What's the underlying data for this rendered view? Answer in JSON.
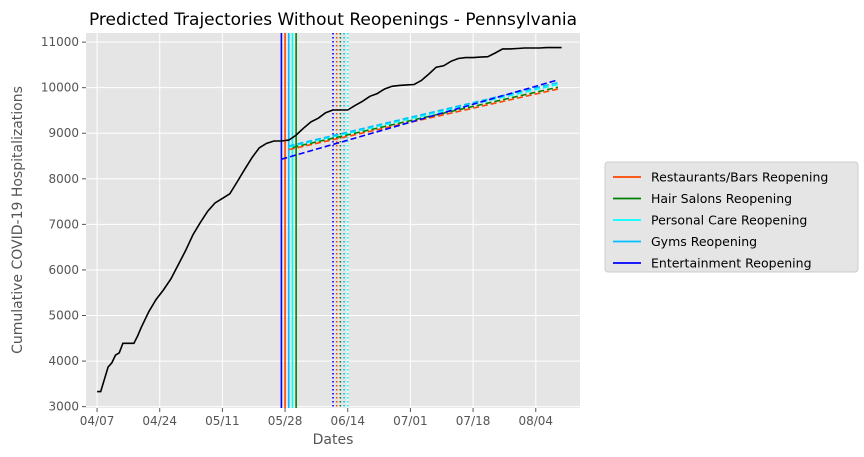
{
  "chart_data": {
    "type": "line",
    "title": "Predicted Trajectories Without Reopenings - Pennsylvania",
    "xlabel": "Dates",
    "ylabel": "Cumulative COVID-19 Hospitalizations",
    "x_ticks": [
      "04/07",
      "04/24",
      "05/11",
      "05/28",
      "06/14",
      "07/01",
      "07/18",
      "08/04"
    ],
    "y_ticks": [
      3000,
      4000,
      5000,
      6000,
      7000,
      8000,
      9000,
      10000,
      11000
    ],
    "xlim": [
      "2020-04-04",
      "2020-08-16"
    ],
    "ylim": [
      2970,
      11200
    ],
    "grid": true,
    "legend_position": "outside-right",
    "colors": {
      "background": "#e5e5e5",
      "grid": "#ffffff",
      "observed": "#000000",
      "restaurants": "#ff4500",
      "hair_salons": "#008000",
      "personal_care": "#00ffff",
      "gyms": "#00bfff",
      "entertainment": "#0000ff"
    },
    "observed": {
      "dates": [
        "2020-04-07",
        "2020-04-08",
        "2020-04-09",
        "2020-04-10",
        "2020-04-11",
        "2020-04-12",
        "2020-04-13",
        "2020-04-14",
        "2020-04-15",
        "2020-04-16",
        "2020-04-17",
        "2020-04-18",
        "2020-04-19",
        "2020-04-21",
        "2020-04-23",
        "2020-04-25",
        "2020-04-27",
        "2020-04-29",
        "2020-05-01",
        "2020-05-03",
        "2020-05-05",
        "2020-05-07",
        "2020-05-09",
        "2020-05-11",
        "2020-05-13",
        "2020-05-15",
        "2020-05-17",
        "2020-05-19",
        "2020-05-21",
        "2020-05-23",
        "2020-05-25",
        "2020-05-27",
        "2020-05-29",
        "2020-05-31",
        "2020-06-02",
        "2020-06-04",
        "2020-06-06",
        "2020-06-08",
        "2020-06-10",
        "2020-06-12",
        "2020-06-14",
        "2020-06-16",
        "2020-06-18",
        "2020-06-20",
        "2020-06-22",
        "2020-06-24",
        "2020-06-26",
        "2020-06-28",
        "2020-06-30",
        "2020-07-02",
        "2020-07-04",
        "2020-07-06",
        "2020-07-08",
        "2020-07-10",
        "2020-07-12",
        "2020-07-14",
        "2020-07-16",
        "2020-07-18",
        "2020-07-20",
        "2020-07-22",
        "2020-07-24",
        "2020-07-26",
        "2020-07-28",
        "2020-07-30",
        "2020-08-01",
        "2020-08-03",
        "2020-08-05",
        "2020-08-07",
        "2020-08-09",
        "2020-08-11"
      ],
      "values": [
        3330,
        3330,
        3600,
        3870,
        3960,
        4130,
        4180,
        4390,
        4390,
        4390,
        4390,
        4550,
        4740,
        5080,
        5350,
        5560,
        5800,
        6110,
        6420,
        6770,
        7040,
        7290,
        7470,
        7570,
        7670,
        7930,
        8200,
        8460,
        8680,
        8780,
        8830,
        8830,
        8850,
        8960,
        9110,
        9250,
        9330,
        9450,
        9510,
        9510,
        9510,
        9610,
        9700,
        9810,
        9870,
        9970,
        10030,
        10050,
        10060,
        10070,
        10160,
        10300,
        10450,
        10480,
        10580,
        10640,
        10660,
        10660,
        10670,
        10680,
        10760,
        10850,
        10850,
        10860,
        10870,
        10870,
        10870,
        10880,
        10880,
        10880
      ]
    },
    "predictions": [
      {
        "name": "Restaurants/Bars Reopening",
        "color_key": "restaurants",
        "x": [
          "2020-05-29",
          "2020-08-10"
        ],
        "y": [
          8640,
          9970
        ]
      },
      {
        "name": "Hair Salons Reopening",
        "color_key": "hair_salons",
        "x": [
          "2020-05-30",
          "2020-08-10"
        ],
        "y": [
          8690,
          10010
        ]
      },
      {
        "name": "Personal Care Reopening",
        "color_key": "personal_care",
        "x": [
          "2020-05-29",
          "2020-08-10"
        ],
        "y": [
          8700,
          10070
        ]
      },
      {
        "name": "Gyms Reopening",
        "color_key": "gyms",
        "x": [
          "2020-05-29",
          "2020-08-10"
        ],
        "y": [
          8720,
          10110
        ]
      },
      {
        "name": "Entertainment Reopening",
        "color_key": "entertainment",
        "x": [
          "2020-05-27",
          "2020-08-10"
        ],
        "y": [
          8430,
          10170
        ]
      }
    ],
    "reopening_lines": [
      {
        "date": "2020-05-27",
        "color_key": "entertainment",
        "style": "solid"
      },
      {
        "date": "2020-05-28",
        "color_key": "restaurants",
        "style": "solid"
      },
      {
        "date": "2020-05-29",
        "color_key": "gyms",
        "style": "solid"
      },
      {
        "date": "2020-05-30",
        "color_key": "personal_care",
        "style": "solid"
      },
      {
        "date": "2020-05-31",
        "color_key": "hair_salons",
        "style": "solid"
      },
      {
        "date": "2020-06-10",
        "color_key": "entertainment",
        "style": "dotted"
      },
      {
        "date": "2020-06-11",
        "color_key": "restaurants",
        "style": "dotted"
      },
      {
        "date": "2020-06-12",
        "color_key": "hair_salons",
        "style": "dotted"
      },
      {
        "date": "2020-06-13",
        "color_key": "gyms",
        "style": "dotted"
      },
      {
        "date": "2020-06-14",
        "color_key": "personal_care",
        "style": "dotted"
      }
    ],
    "legend": [
      {
        "label": "Restaurants/Bars Reopening",
        "color_key": "restaurants"
      },
      {
        "label": "Hair Salons Reopening",
        "color_key": "hair_salons"
      },
      {
        "label": "Personal Care Reopening",
        "color_key": "personal_care"
      },
      {
        "label": "Gyms Reopening",
        "color_key": "gyms"
      },
      {
        "label": "Entertainment Reopening",
        "color_key": "entertainment"
      }
    ]
  }
}
